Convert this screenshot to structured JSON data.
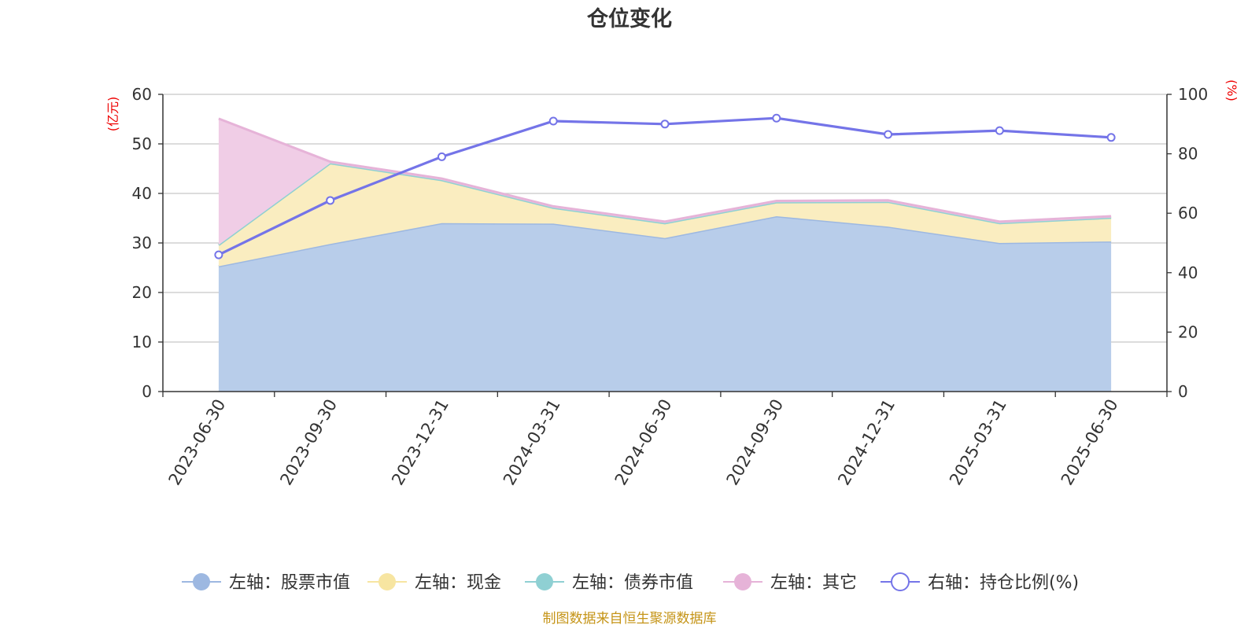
{
  "chart_data": {
    "type": "area",
    "title": "仓位变化",
    "left_axis": {
      "unit": "(亿元)",
      "ylim": [
        0,
        60
      ],
      "ticks": [
        0,
        10,
        20,
        30,
        40,
        50,
        60
      ]
    },
    "right_axis": {
      "unit": "(%)",
      "ylim": [
        0,
        100
      ],
      "ticks": [
        0,
        20,
        40,
        60,
        80,
        100
      ]
    },
    "categories": [
      "2023-06-30",
      "2023-09-30",
      "2023-12-31",
      "2024-03-31",
      "2024-06-30",
      "2024-09-30",
      "2024-12-31",
      "2025-03-31",
      "2025-06-30"
    ],
    "series": [
      {
        "name": "左轴：股票市值",
        "axis": "left",
        "kind": "stacked-area",
        "color": "#9db8e1",
        "fill": "#b8cdea",
        "values": [
          25.3,
          29.8,
          34.0,
          33.9,
          31.0,
          35.4,
          33.3,
          30.0,
          30.3
        ]
      },
      {
        "name": "左轴：现金",
        "axis": "left",
        "kind": "stacked-area",
        "color": "#f7e5a1",
        "fill": "#faedc0",
        "values": [
          4.3,
          16.3,
          8.7,
          3.2,
          3.0,
          2.8,
          5.0,
          4.0,
          4.8
        ]
      },
      {
        "name": "左轴：债券市值",
        "axis": "left",
        "kind": "stacked-area",
        "color": "#8fd0d3",
        "fill": "#a6dadc",
        "values": [
          0,
          0,
          0,
          0,
          0,
          0,
          0,
          0,
          0
        ]
      },
      {
        "name": "左轴：其它",
        "axis": "left",
        "kind": "stacked-area",
        "color": "#e6b3d8",
        "fill": "#f0cde6",
        "values": [
          25.5,
          0.3,
          0.3,
          0.3,
          0.3,
          0.3,
          0.3,
          0.3,
          0.3
        ]
      },
      {
        "name": "右轴：持仓比例(%)",
        "axis": "right",
        "kind": "line",
        "color": "#7474e8",
        "values": [
          46.0,
          64.3,
          79.0,
          91.0,
          90.0,
          92.0,
          86.5,
          87.8,
          85.5
        ]
      }
    ],
    "grid": true,
    "legend_position": "bottom"
  },
  "source": "制图数据来自恒生聚源数据库"
}
